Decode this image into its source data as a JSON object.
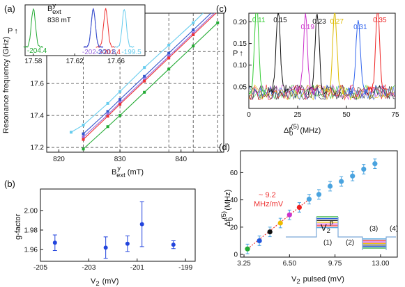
{
  "chart_data": [
    {
      "panel_label": "(a)",
      "type": "line",
      "xlabel": "B",
      "xlabel_sup": "y",
      "xlabel_sub": "ext",
      "xlabel_unit": "(mT)",
      "ylabel": "Resonance frequency (GHz)",
      "xlim": [
        818,
        847
      ],
      "ylim": [
        17.17,
        18.04
      ],
      "xticks": [
        820,
        830,
        840
      ],
      "yticks": [
        17.2,
        17.4,
        17.6
      ],
      "series": [
        {
          "color": "#66ccee",
          "x": [
            822,
            824,
            828,
            830,
            834,
            838,
            842,
            846
          ],
          "y": [
            17.295,
            17.34,
            17.475,
            17.55,
            17.7,
            17.84,
            17.98,
            18.13
          ]
        },
        {
          "color": "#3355cc",
          "x": [
            824,
            828,
            830,
            834,
            838,
            842,
            846
          ],
          "y": [
            17.285,
            17.425,
            17.5,
            17.645,
            17.79,
            17.935,
            18.08
          ]
        },
        {
          "color": "#9966dd",
          "x": [
            824,
            828,
            830,
            834,
            838,
            842,
            846
          ],
          "y": [
            17.265,
            17.405,
            17.48,
            17.625,
            17.77,
            17.915,
            18.06
          ]
        },
        {
          "color": "#ee3333",
          "x": [
            824,
            828,
            830,
            834,
            838,
            842,
            846
          ],
          "y": [
            17.25,
            17.395,
            17.47,
            17.615,
            17.76,
            17.905,
            18.05
          ]
        },
        {
          "color": "#22aa33",
          "x": [
            824,
            828,
            830,
            834,
            838,
            842,
            846
          ],
          "y": [
            17.19,
            17.33,
            17.4,
            17.545,
            17.69,
            17.835,
            17.98
          ]
        }
      ],
      "inset": {
        "ylabel": "P",
        "title": "B",
        "title_sup": "y",
        "title_sub": "ext",
        "field": "838 mT",
        "xlim": [
          17.572,
          17.688
        ],
        "xticks": [
          "17.58",
          "17.62",
          "17.66"
        ],
        "peaks": [
          {
            "center": 17.58,
            "label": "-204.4",
            "color": "#22aa33"
          },
          {
            "center": 17.638,
            "label": "-202.3",
            "color": "#9966dd"
          },
          {
            "center": 17.65,
            "label": "-201.4",
            "color": "#ee3333"
          },
          {
            "center": 17.638,
            "label": "-200.8",
            "color": "#3355cc"
          },
          {
            "center": 17.668,
            "label": "-199.5",
            "color": "#66ccee"
          }
        ]
      }
    },
    {
      "panel_label": "(b)",
      "type": "scatter",
      "xlabel": "V",
      "xlabel_sub": "2",
      "xlabel_unit": "(mV)",
      "ylabel": "g-factor",
      "xlim": [
        -205,
        -198.6
      ],
      "ylim": [
        1.948,
        2.022
      ],
      "xticks": [
        "-205",
        "-203",
        "-201",
        "-199"
      ],
      "yticks": [
        "1.96",
        "1.98",
        "2.00"
      ],
      "points": [
        {
          "x": -204.4,
          "y": 1.967,
          "err": 0.008
        },
        {
          "x": -202.3,
          "y": 1.962,
          "err": 0.011
        },
        {
          "x": -201.4,
          "y": 1.966,
          "err": 0.008
        },
        {
          "x": -200.8,
          "y": 1.986,
          "err": 0.023
        },
        {
          "x": -199.5,
          "y": 1.965,
          "err": 0.004
        }
      ],
      "color": "#2244dd"
    },
    {
      "panel_label": "(c)",
      "type": "line",
      "xlabel": "Δf",
      "xlabel_sup": "(5)",
      "xlabel_sub": "0",
      "xlabel_unit": "(MHz)",
      "ylabel": "P",
      "xlim": [
        0,
        75
      ],
      "ylim": [
        0,
        0.22
      ],
      "xticks": [
        "0",
        "25",
        "50",
        "75"
      ],
      "yticks": [
        "0.05",
        "0.10",
        "0.15",
        "0.20"
      ],
      "peaks": [
        {
          "center": 4,
          "height": 0.21,
          "label": "0.11",
          "color": "#33cc33"
        },
        {
          "center": 15,
          "height": 0.19,
          "label": "0.15",
          "color": "#111111"
        },
        {
          "center": 29,
          "height": 0.17,
          "label": "0.19",
          "color": "#cc33cc"
        },
        {
          "center": 35,
          "height": 0.185,
          "label": "0.23",
          "color": "#111111"
        },
        {
          "center": 44,
          "height": 0.19,
          "label": "0.27",
          "color": "#ddbb00"
        },
        {
          "center": 56,
          "height": 0.17,
          "label": "0.31",
          "color": "#3366ee"
        },
        {
          "center": 66,
          "height": 0.19,
          "label": "0.35",
          "color": "#ee2222"
        }
      ]
    },
    {
      "panel_label": "(d)",
      "type": "scatter",
      "xlabel": "V",
      "xlabel_sub": "2",
      "xlabel_unit": "pulsed (mV)",
      "ylabel": "Δf",
      "ylabel_sup": "(5)",
      "ylabel_sub": "0",
      "ylabel_unit": "(MHz)",
      "xlim": [
        3.0,
        14.2
      ],
      "ylim": [
        -2,
        76
      ],
      "xticks": [
        "3.25",
        "6.50",
        "9.75",
        "13.00"
      ],
      "yticks": [
        "0",
        "20",
        "40",
        "60"
      ],
      "slope_label": "~ 9.2",
      "slope_unit": "MHz/mV",
      "points": [
        {
          "x": 3.5,
          "y": 4,
          "err": 3.5,
          "color": "#22aa33"
        },
        {
          "x": 4.35,
          "y": 10,
          "err": 3.5,
          "color": "#2255dd"
        },
        {
          "x": 5.1,
          "y": 16.5,
          "err": 3.5,
          "color": "#111111"
        },
        {
          "x": 5.85,
          "y": 23,
          "err": 3.5,
          "color": "#eebb00"
        },
        {
          "x": 6.5,
          "y": 29,
          "err": 3.5,
          "color": "#cc33cc"
        },
        {
          "x": 7.2,
          "y": 34.5,
          "err": 3.5,
          "color": "#ee2222"
        },
        {
          "x": 7.9,
          "y": 40.5,
          "err": 3.5,
          "color": "#4aa3df"
        },
        {
          "x": 8.6,
          "y": 44,
          "err": 3.5,
          "color": "#4aa3df"
        },
        {
          "x": 9.4,
          "y": 50,
          "err": 3.5,
          "color": "#4aa3df"
        },
        {
          "x": 10.2,
          "y": 53.5,
          "err": 3.5,
          "color": "#4aa3df"
        },
        {
          "x": 11.0,
          "y": 57.5,
          "err": 3.5,
          "color": "#4aa3df"
        },
        {
          "x": 11.8,
          "y": 62.5,
          "err": 3.5,
          "color": "#4aa3df"
        },
        {
          "x": 12.6,
          "y": 66.5,
          "err": 3.5,
          "color": "#4aa3df"
        }
      ],
      "fit": {
        "x": [
          3.5,
          7.9
        ],
        "y": [
          4,
          40.5
        ],
        "color": "#ee3333"
      },
      "pulse_label": "V",
      "pulse_label_sub": "2",
      "pulse_label_sup": "p",
      "pulse_phases": [
        "(1)",
        "(2)",
        "(3)",
        "(4)"
      ],
      "pulse_colors": [
        "#22aa33",
        "#2255dd",
        "#111111",
        "#eebb00",
        "#cc33cc",
        "#ee2222",
        "#4aa3df"
      ]
    }
  ]
}
